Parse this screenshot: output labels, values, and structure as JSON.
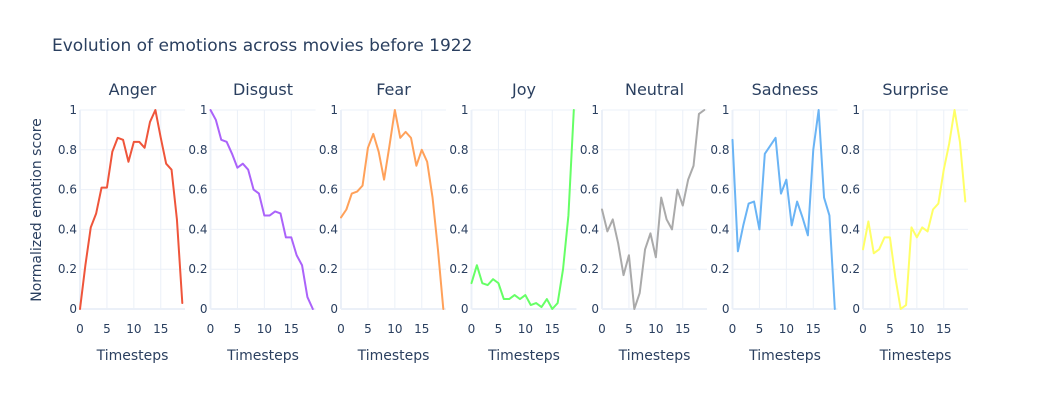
{
  "chart_data": {
    "type": "line",
    "title": "Evolution of emotions across movies before 1922",
    "ylabel": "Normalized emotion score",
    "xlabel": "Timesteps",
    "ylim": [
      0,
      1
    ],
    "yticks": [
      0,
      0.2,
      0.4,
      0.6,
      0.8,
      1
    ],
    "ytick_labels": [
      "0",
      "0.2",
      "0.4",
      "0.6",
      "0.8",
      "1"
    ],
    "xticks": [
      0,
      5,
      10,
      15
    ],
    "xtick_labels": [
      "0",
      "5",
      "10",
      "15"
    ],
    "grid": true,
    "panels": [
      {
        "name": "Anger",
        "color": "#EF553B",
        "xlim": [
          0,
          19.5
        ],
        "x": [
          0,
          1,
          2,
          3,
          4,
          5,
          6,
          7,
          8,
          9,
          10,
          11,
          12,
          13,
          14,
          15,
          16,
          17,
          18,
          19
        ],
        "values": [
          0,
          0.22,
          0.41,
          0.48,
          0.61,
          0.61,
          0.79,
          0.86,
          0.85,
          0.74,
          0.84,
          0.84,
          0.81,
          0.94,
          1.0,
          0.86,
          0.73,
          0.7,
          0.45,
          0.03
        ]
      },
      {
        "name": "Disgust",
        "color": "#AB63FA",
        "xlim": [
          0,
          19.5
        ],
        "x": [
          0,
          1,
          2,
          3,
          4,
          5,
          6,
          7,
          8,
          9,
          10,
          11,
          12,
          13,
          14,
          15,
          16,
          17,
          18,
          19
        ],
        "values": [
          1.0,
          0.95,
          0.85,
          0.84,
          0.78,
          0.71,
          0.73,
          0.7,
          0.6,
          0.58,
          0.47,
          0.47,
          0.49,
          0.48,
          0.36,
          0.36,
          0.27,
          0.22,
          0.06,
          0.0
        ]
      },
      {
        "name": "Fear",
        "color": "#FFA15A",
        "xlim": [
          0,
          19.5
        ],
        "x": [
          0,
          1,
          2,
          3,
          4,
          5,
          6,
          7,
          8,
          9,
          10,
          11,
          12,
          13,
          14,
          15,
          16,
          17,
          18,
          19
        ],
        "values": [
          0.46,
          0.5,
          0.58,
          0.59,
          0.62,
          0.81,
          0.88,
          0.79,
          0.65,
          0.82,
          1.0,
          0.86,
          0.89,
          0.86,
          0.72,
          0.8,
          0.74,
          0.56,
          0.3,
          0.0
        ]
      },
      {
        "name": "Joy",
        "color": "#66FF66",
        "xlim": [
          0,
          19.5
        ],
        "x": [
          0,
          1,
          2,
          3,
          4,
          5,
          6,
          7,
          8,
          9,
          10,
          11,
          12,
          13,
          14,
          15,
          16,
          17,
          18,
          19
        ],
        "values": [
          0.13,
          0.22,
          0.13,
          0.12,
          0.15,
          0.13,
          0.05,
          0.05,
          0.07,
          0.05,
          0.07,
          0.02,
          0.03,
          0.01,
          0.05,
          0.0,
          0.03,
          0.2,
          0.47,
          1.0
        ]
      },
      {
        "name": "Neutral",
        "color": "#AAAAAA",
        "xlim": [
          0,
          19.5
        ],
        "x": [
          0,
          1,
          2,
          3,
          4,
          5,
          6,
          7,
          8,
          9,
          10,
          11,
          12,
          13,
          14,
          15,
          16,
          17,
          18,
          19
        ],
        "values": [
          0.5,
          0.39,
          0.45,
          0.33,
          0.17,
          0.27,
          0.0,
          0.08,
          0.3,
          0.38,
          0.26,
          0.56,
          0.45,
          0.4,
          0.6,
          0.52,
          0.65,
          0.72,
          0.98,
          1.0
        ]
      },
      {
        "name": "Sadness",
        "color": "#6AB4F5",
        "xlim": [
          0,
          19.5
        ],
        "x": [
          0,
          1,
          2,
          3,
          4,
          5,
          6,
          7,
          8,
          9,
          10,
          11,
          12,
          13,
          14,
          15,
          16,
          17,
          18,
          19
        ],
        "values": [
          0.85,
          0.29,
          0.42,
          0.53,
          0.54,
          0.4,
          0.78,
          0.82,
          0.86,
          0.58,
          0.65,
          0.42,
          0.54,
          0.46,
          0.37,
          0.8,
          1.0,
          0.56,
          0.47,
          0.0
        ]
      },
      {
        "name": "Surprise",
        "color": "#FFFF66",
        "xlim": [
          0,
          19.5
        ],
        "x": [
          0,
          1,
          2,
          3,
          4,
          5,
          6,
          7,
          8,
          9,
          10,
          11,
          12,
          13,
          14,
          15,
          16,
          17,
          18,
          19
        ],
        "values": [
          0.3,
          0.44,
          0.28,
          0.3,
          0.36,
          0.36,
          0.16,
          0.0,
          0.02,
          0.41,
          0.36,
          0.41,
          0.39,
          0.5,
          0.53,
          0.7,
          0.83,
          1.0,
          0.84,
          0.54
        ]
      }
    ]
  }
}
